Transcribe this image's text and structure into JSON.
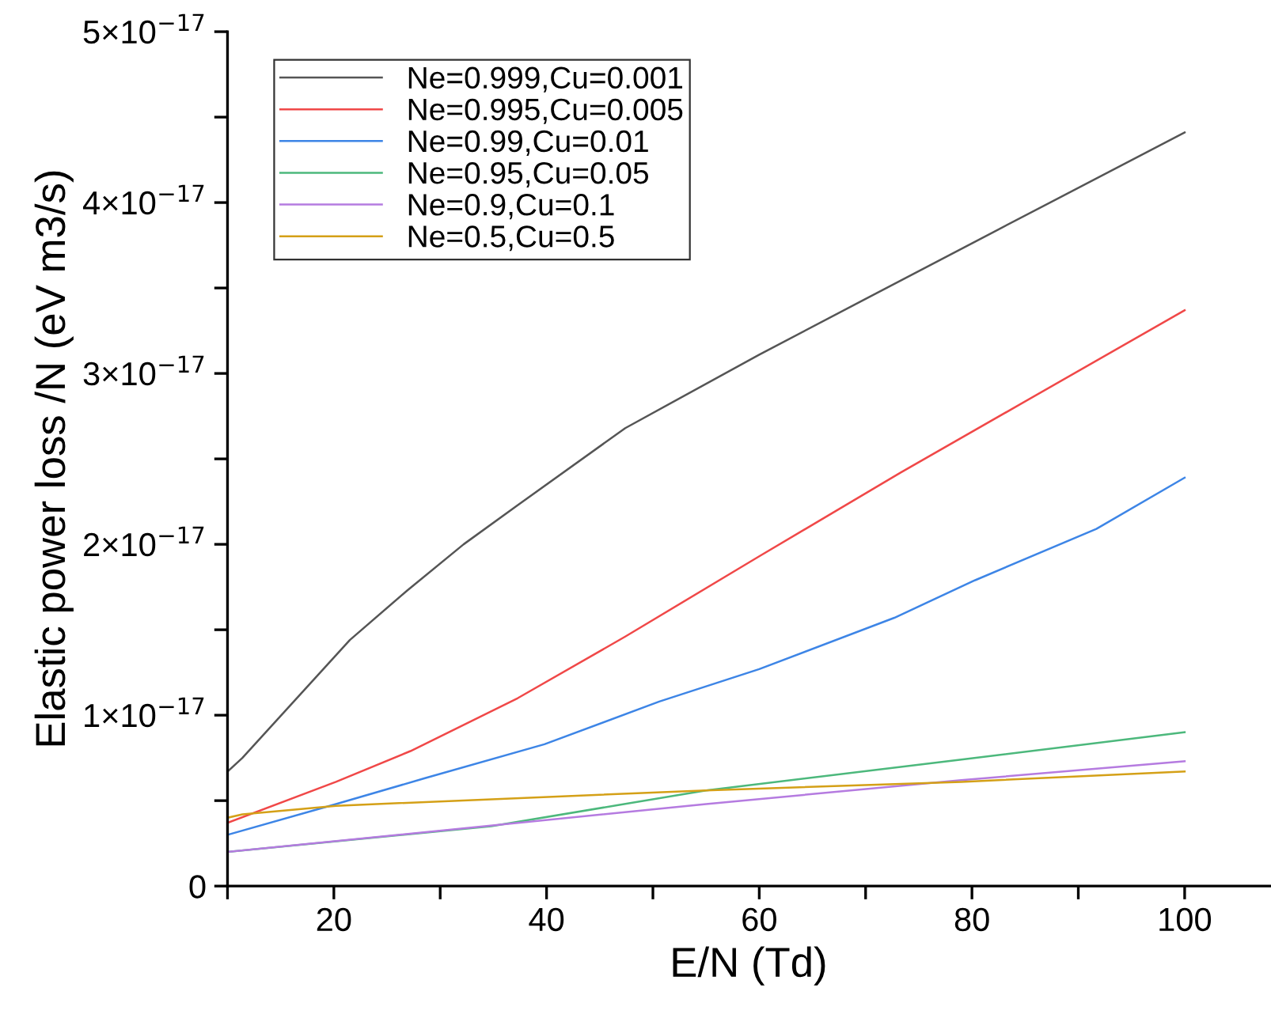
{
  "chart_data": {
    "type": "line",
    "xlabel": "E/N (Td)",
    "ylabel": "Elastic power loss /N (eV m3/s)",
    "xlim": [
      10,
      108
    ],
    "ylim": [
      0,
      5e-17
    ],
    "xticks": [
      {
        "value": 10,
        "label": null
      },
      20,
      {
        "value": 30,
        "label": null
      },
      40,
      {
        "value": 50,
        "label": null
      },
      60,
      {
        "value": 70,
        "label": null
      },
      80,
      {
        "value": 90,
        "label": null
      },
      100
    ],
    "yticks": [
      0,
      {
        "value": 5e-18,
        "label": null
      },
      {
        "value": 1e-17,
        "label": "1×10$^{−17}$"
      },
      {
        "value": 1.5e-17,
        "label": null
      },
      {
        "value": 2e-17,
        "label": "2×10$^{−17}$"
      },
      {
        "value": 2.5e-17,
        "label": null
      },
      {
        "value": 3e-17,
        "label": "3×10$^{−17}$"
      },
      {
        "value": 3.5e-17,
        "label": null
      },
      {
        "value": 4e-17,
        "label": "4×10$^{−17}$"
      },
      {
        "value": 4.5e-17,
        "label": null
      },
      {
        "value": 5e-17,
        "label": "5×10$^{−17}$"
      }
    ],
    "grid": false,
    "legend": "top left",
    "marker": "none",
    "line_style": "solid",
    "series": [
      {
        "name": "Ne=0.999,Cu=0.001",
        "color": "#555555",
        "x": [
          10,
          11.4,
          21.5,
          26.9,
          32.2,
          37.3,
          47.4,
          60,
          69.5,
          82.1,
          100
        ],
        "values": [
          6.7e-18,
          7.5e-18,
          1.44e-17,
          1.73e-17,
          2e-17,
          2.23e-17,
          2.68e-17,
          3.11e-17,
          3.42e-17,
          3.83e-17,
          4.41e-17
        ]
      },
      {
        "name": "Ne=0.995,Cu=0.005",
        "color": "#f04848",
        "x": [
          10,
          20.2,
          27.2,
          37.3,
          47.4,
          60,
          73.3,
          100
        ],
        "values": [
          3.7e-18,
          6.1e-18,
          7.9e-18,
          1.1e-17,
          1.46e-17,
          1.93e-17,
          2.42e-17,
          3.37e-17
        ]
      },
      {
        "name": "Ne=0.99,Cu=0.01",
        "color": "#3d85e6",
        "x": [
          10,
          20.2,
          28.5,
          39.8,
          50.6,
          60,
          72.7,
          80.3,
          91.7,
          100
        ],
        "values": [
          3e-18,
          4.8e-18,
          6.3e-18,
          8.3e-18,
          1.08e-17,
          1.27e-17,
          1.57e-17,
          1.79e-17,
          2.09e-17,
          2.39e-17
        ]
      },
      {
        "name": "Ne=0.95,Cu=0.05",
        "color": "#4cb87c",
        "x": [
          10,
          34.8,
          55,
          79,
          100
        ],
        "values": [
          2e-18,
          3.5e-18,
          5.6e-18,
          7.4e-18,
          9e-18
        ]
      },
      {
        "name": "Ne=0.9,Cu=0.1",
        "color": "#b57be0",
        "x": [
          10,
          55,
          79,
          100
        ],
        "values": [
          2e-18,
          4.8e-18,
          6.2e-18,
          7.3e-18
        ]
      },
      {
        "name": "Ne=0.5,Cu=0.5",
        "color": "#d4a017",
        "x": [
          10,
          11.4,
          20.2,
          55,
          79,
          100
        ],
        "values": [
          4e-18,
          4.2e-18,
          4.7e-18,
          5.6e-18,
          6.1e-18,
          6.7e-18
        ]
      }
    ]
  }
}
